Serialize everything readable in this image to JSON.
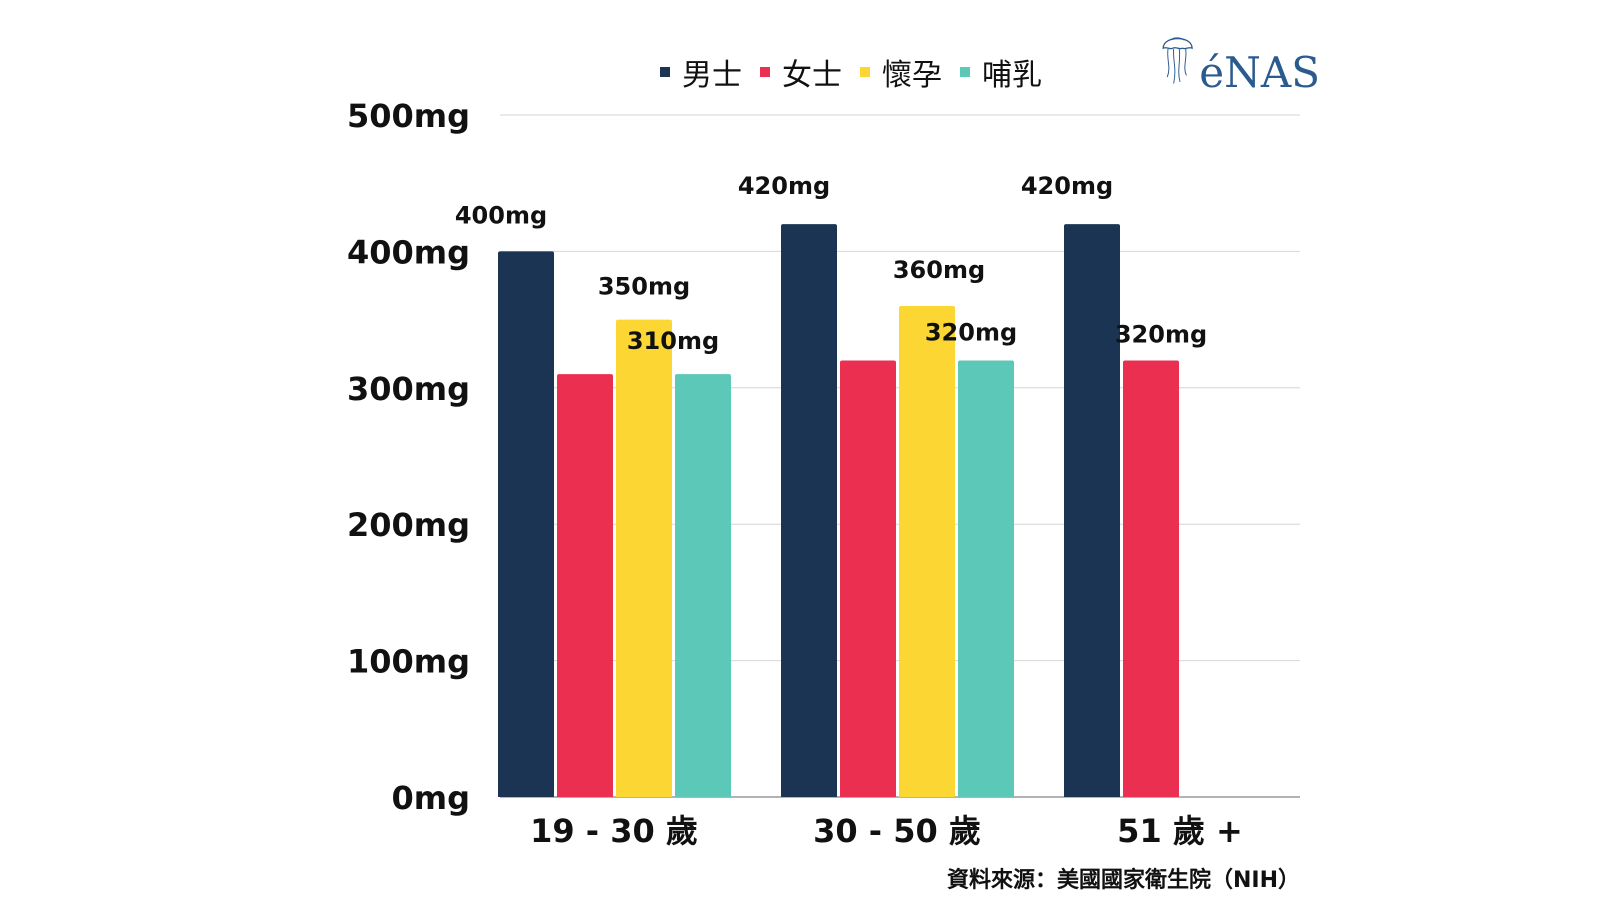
{
  "colors": {
    "series": [
      "#1c3453",
      "#eb2f51",
      "#fcd733",
      "#5cc8b8"
    ],
    "grid": "#d6d6d6",
    "text": "#111111",
    "logo": "#2b5a8f"
  },
  "logo": {
    "text": "éNAS",
    "icon": "jellyfish-icon"
  },
  "source": "資料來源：美國國家衛生院（NIH）",
  "chart_data": {
    "type": "bar",
    "categories": [
      "19 - 30 歲",
      "30 - 50 歲",
      "51 歲 +"
    ],
    "series": [
      {
        "name": "男士",
        "values": [
          400,
          420,
          420
        ]
      },
      {
        "name": "女士",
        "values": [
          310,
          320,
          320
        ]
      },
      {
        "name": "懷孕",
        "values": [
          350,
          360,
          null
        ]
      },
      {
        "name": "哺乳",
        "values": [
          310,
          320,
          null
        ]
      }
    ],
    "data_labels": [
      [
        "400mg",
        "420mg",
        "420mg"
      ],
      [
        "",
        "",
        "320mg"
      ],
      [
        "350mg",
        "360mg",
        ""
      ],
      [
        "310mg",
        "320mg",
        ""
      ]
    ],
    "yticks": [
      "0mg",
      "100mg",
      "200mg",
      "300mg",
      "400mg",
      "500mg"
    ],
    "ylim": [
      0,
      500
    ],
    "grid": true,
    "legend_position": "top"
  }
}
